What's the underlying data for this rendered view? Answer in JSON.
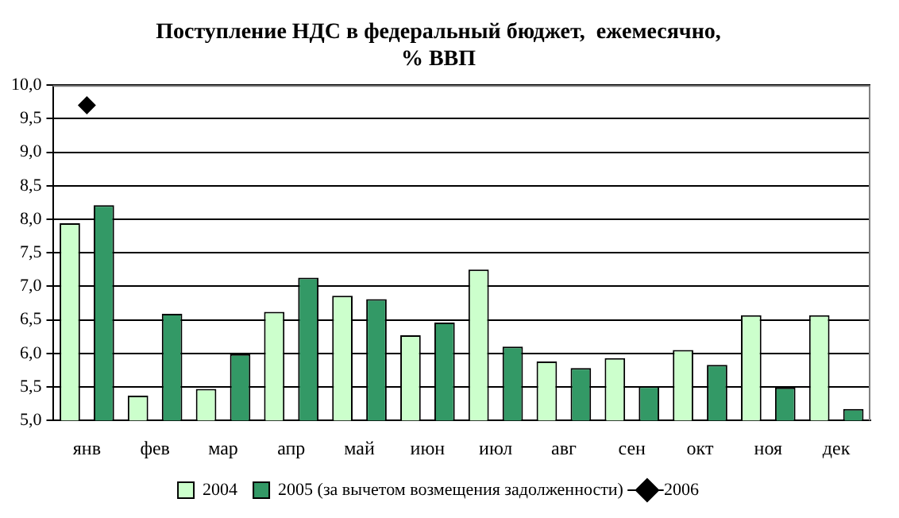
{
  "chart_data": {
    "type": "bar",
    "title": "Поступление НДС в федеральный бюджет,  ежемесячно,\n% ВВП",
    "categories": [
      "янв",
      "фев",
      "мар",
      "апр",
      "май",
      "июн",
      "июл",
      "авг",
      "сен",
      "окт",
      "ноя",
      "дек"
    ],
    "series": [
      {
        "name": "2004",
        "color": "#ccffcc",
        "values": [
          7.94,
          5.37,
          5.47,
          6.62,
          6.86,
          6.27,
          7.25,
          5.88,
          5.93,
          6.05,
          6.57,
          6.57
        ]
      },
      {
        "name": "2005 (за вычетом возмещения задолженности)",
        "color": "#339966",
        "values": [
          8.21,
          6.59,
          5.99,
          7.13,
          6.81,
          6.46,
          6.1,
          5.78,
          5.51,
          5.83,
          5.49,
          5.17
        ]
      },
      {
        "name": "2006",
        "type": "line",
        "color": "#000000",
        "marker": "diamond",
        "line_style": "solid",
        "values": [
          9.7,
          null,
          null,
          null,
          null,
          null,
          null,
          null,
          null,
          null,
          null,
          null
        ]
      }
    ],
    "ylim": [
      5,
      10
    ],
    "yticks": [
      {
        "value": 5,
        "label": "5,0"
      },
      {
        "value": 5.5,
        "label": "5,5"
      },
      {
        "value": 6,
        "label": "6,0"
      },
      {
        "value": 6.5,
        "label": "6,5"
      },
      {
        "value": 7,
        "label": "7,0"
      },
      {
        "value": 7.5,
        "label": "7,5"
      },
      {
        "value": 8,
        "label": "8,0"
      },
      {
        "value": 8.5,
        "label": "8,5"
      },
      {
        "value": 9,
        "label": "9,0"
      },
      {
        "value": 9.5,
        "label": "9,5"
      },
      {
        "value": 10,
        "label": "10,0"
      }
    ],
    "grid": "y",
    "legend": "bottom"
  }
}
